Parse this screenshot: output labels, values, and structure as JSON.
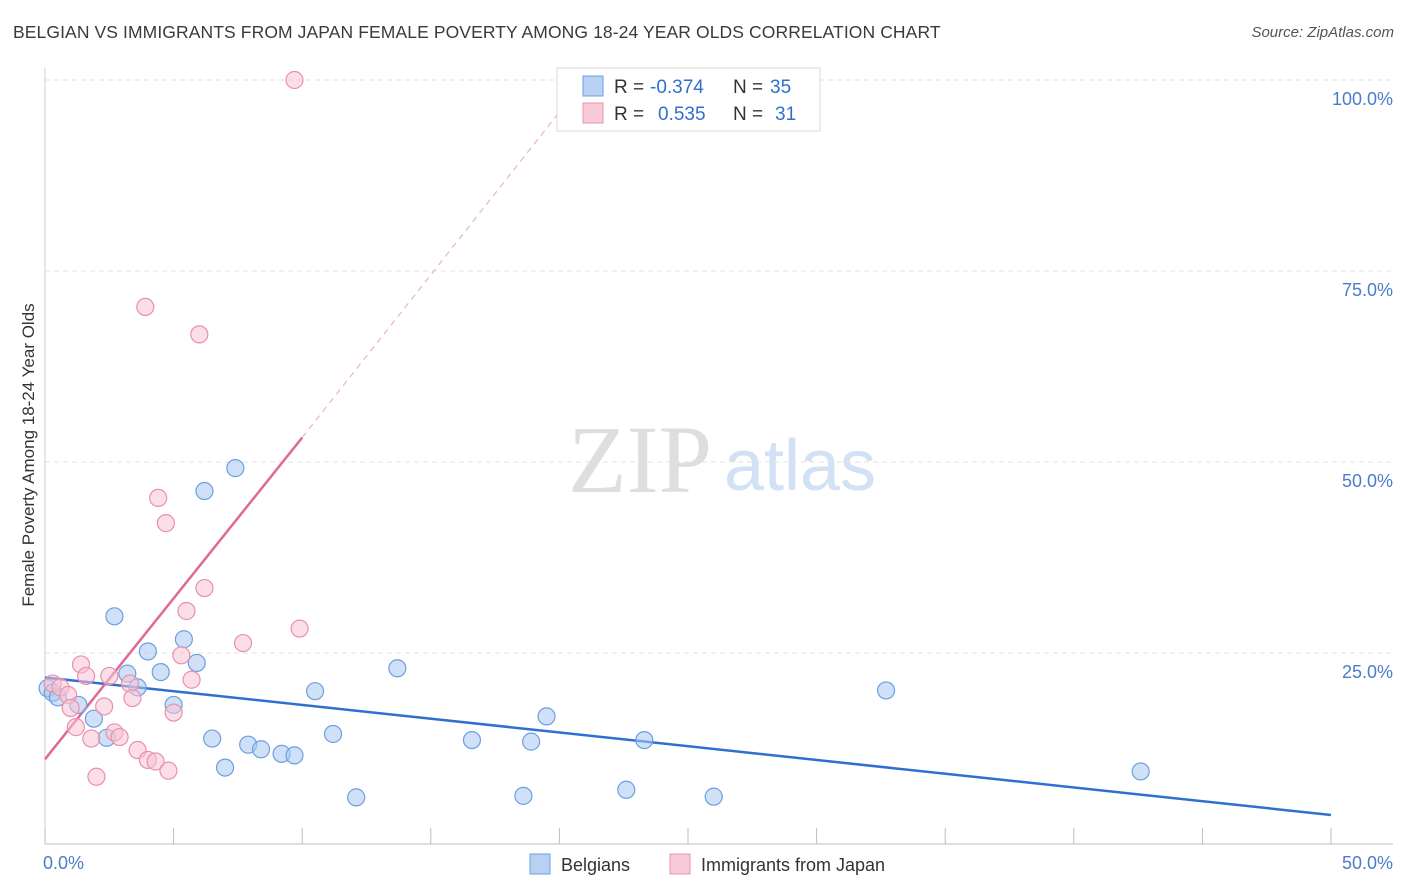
{
  "title": "BELGIAN VS IMMIGRANTS FROM JAPAN FEMALE POVERTY AMONG 18-24 YEAR OLDS CORRELATION CHART",
  "source": "Source: ZipAtlas.com",
  "watermark": {
    "zip": "ZIP",
    "atlas": "atlas"
  },
  "chart_data": {
    "type": "scatter",
    "ylabel": "Female Poverty Among 18-24 Year Olds",
    "xlim": [
      0,
      50
    ],
    "ylim": [
      0,
      100
    ],
    "x_tick_labels": [
      {
        "value": 0,
        "label": "0.0%"
      },
      {
        "value": 50,
        "label": "50.0%"
      }
    ],
    "y_tick_labels": [
      {
        "value": 25,
        "label": "25.0%"
      },
      {
        "value": 50,
        "label": "50.0%"
      },
      {
        "value": 75,
        "label": "75.0%"
      },
      {
        "value": 100,
        "label": "100.0%"
      }
    ],
    "legend": [
      {
        "name": "Belgians",
        "r_label": "R =",
        "r_value": "-0.374",
        "n_label": "N =",
        "n_value": "35"
      },
      {
        "name": "Immigrants from Japan",
        "r_label": "R =",
        "r_value": "0.535",
        "n_label": "N =",
        "n_value": "31"
      }
    ],
    "series": [
      {
        "name": "Belgians",
        "color": "#6b9fe3",
        "fill": "#aac8f0",
        "trend_color": "#2f6fd1",
        "trend": {
          "x0": 0,
          "y0": 21.8,
          "x1": 50,
          "y1": 3.8
        },
        "points": [
          [
            0.1,
            20.4
          ],
          [
            0.3,
            19.8
          ],
          [
            0.5,
            19.2
          ],
          [
            1.3,
            18.2
          ],
          [
            1.9,
            16.4
          ],
          [
            2.4,
            13.9
          ],
          [
            2.7,
            29.8
          ],
          [
            3.2,
            22.3
          ],
          [
            3.6,
            20.5
          ],
          [
            4.0,
            25.2
          ],
          [
            4.5,
            22.5
          ],
          [
            5.0,
            18.2
          ],
          [
            5.4,
            26.8
          ],
          [
            5.9,
            23.7
          ],
          [
            6.2,
            46.2
          ],
          [
            6.5,
            13.8
          ],
          [
            7.0,
            10.0
          ],
          [
            7.4,
            49.2
          ],
          [
            7.9,
            13.0
          ],
          [
            8.4,
            12.4
          ],
          [
            9.2,
            11.8
          ],
          [
            9.7,
            11.6
          ],
          [
            10.5,
            20.0
          ],
          [
            11.2,
            14.4
          ],
          [
            12.1,
            6.1
          ],
          [
            13.7,
            23.0
          ],
          [
            16.6,
            13.6
          ],
          [
            18.6,
            6.3
          ],
          [
            18.9,
            13.4
          ],
          [
            19.5,
            16.7
          ],
          [
            22.6,
            7.1
          ],
          [
            23.3,
            13.6
          ],
          [
            26.0,
            6.2
          ],
          [
            32.7,
            20.1
          ],
          [
            42.6,
            9.5
          ]
        ]
      },
      {
        "name": "Immigrants from Japan",
        "color": "#e891ad",
        "fill": "#f7c3d3",
        "trend_color": "#e06a92",
        "trend": {
          "x0": 0,
          "y0": 11.1,
          "x1": 10,
          "y1": 53.2
        },
        "trend_ext": {
          "x0": 10,
          "y0": 53.2,
          "x1": 20,
          "y1": 95.8
        },
        "points": [
          [
            0.3,
            21.0
          ],
          [
            0.6,
            20.5
          ],
          [
            0.9,
            19.5
          ],
          [
            1.0,
            17.8
          ],
          [
            1.2,
            15.3
          ],
          [
            1.4,
            23.5
          ],
          [
            1.6,
            22.0
          ],
          [
            1.8,
            13.8
          ],
          [
            2.0,
            8.8
          ],
          [
            2.3,
            18.0
          ],
          [
            2.5,
            22.0
          ],
          [
            2.7,
            14.6
          ],
          [
            2.9,
            14.0
          ],
          [
            3.3,
            21.0
          ],
          [
            3.4,
            19.1
          ],
          [
            3.6,
            12.3
          ],
          [
            3.9,
            70.3
          ],
          [
            4.0,
            11.0
          ],
          [
            4.3,
            10.8
          ],
          [
            4.4,
            45.3
          ],
          [
            4.7,
            42.0
          ],
          [
            4.8,
            9.6
          ],
          [
            5.0,
            17.2
          ],
          [
            5.3,
            24.7
          ],
          [
            5.5,
            30.5
          ],
          [
            6.0,
            66.7
          ],
          [
            6.2,
            33.5
          ],
          [
            7.7,
            26.3
          ],
          [
            9.7,
            100.0
          ],
          [
            9.9,
            28.2
          ],
          [
            5.7,
            21.5
          ]
        ]
      }
    ]
  }
}
